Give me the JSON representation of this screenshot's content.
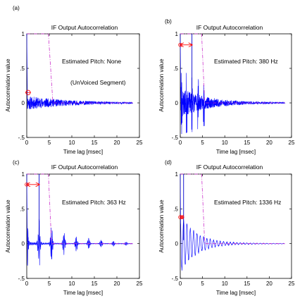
{
  "figure": {
    "panels": [
      {
        "id": "a",
        "panel_label": "(a)",
        "title": "IF Output Autocorrelation",
        "xlabel": "Time lag [msec]",
        "ylabel": "Autocorrelation value",
        "annotations": [
          "Estimated Pitch: None",
          "(UnVoiced Segment)"
        ]
      },
      {
        "id": "b",
        "panel_label": "(b)",
        "title": "IF Output Autocorrelation",
        "xlabel": "Time lag [msec]",
        "ylabel": "Autocorrelation value",
        "annotations": [
          "Estimated Pitch: 380 Hz"
        ]
      },
      {
        "id": "c",
        "panel_label": "(c)",
        "title": "IF Output Autocorrelation",
        "xlabel": "Time lag [msec]",
        "ylabel": "Autocorrelation value",
        "annotations": [
          "Estimated Pitch: 363 Hz"
        ]
      },
      {
        "id": "d",
        "panel_label": "(d)",
        "title": "IF Output Autocorrelation",
        "xlabel": "Time lag [msec]",
        "ylabel": "Autocorrelation value",
        "annotations": [
          "Estimated Pitch: 1336 Hz"
        ]
      }
    ]
  },
  "chart_data": [
    {
      "type": "line",
      "panel": "(a)",
      "title": "IF Output Autocorrelation",
      "xlabel": "Time lag [msec]",
      "ylabel": "Autocorrelation value",
      "xlim": [
        0,
        25
      ],
      "ylim": [
        -0.5,
        1
      ],
      "xticks": [
        0,
        5,
        10,
        15,
        20,
        25
      ],
      "yticks": [
        -0.5,
        0,
        0.5,
        1
      ],
      "signal_end_ms": 23.5,
      "series": [
        {
          "style": "blue-autocorrelation",
          "color": "#0000ff",
          "envelope": {
            "type": "noise",
            "seed": 11,
            "amp": 0.1,
            "decay_ms": 9,
            "floor": 0.005
          }
        },
        {
          "style": "dash-dot-window",
          "color": "#cc33cc",
          "x": [
            0,
            0.7,
            4.8,
            5.8,
            23.5
          ],
          "y": [
            1,
            1,
            1,
            0,
            0
          ]
        }
      ],
      "markers": {
        "color": "#ff0000",
        "points": [
          {
            "x": 0.3,
            "y": 0.15
          }
        ],
        "arrows": []
      },
      "guides": {
        "color": "#0000cc",
        "x": []
      }
    },
    {
      "type": "line",
      "panel": "(b)",
      "title": "IF Output Autocorrelation",
      "xlabel": "Time lag [msec]",
      "ylabel": "Autocorrelation value",
      "xlim": [
        0,
        25
      ],
      "ylim": [
        -0.5,
        1
      ],
      "xticks": [
        0,
        5,
        10,
        15,
        20,
        25
      ],
      "yticks": [
        -0.5,
        0,
        0.5,
        1
      ],
      "signal_end_ms": 23.5,
      "series": [
        {
          "style": "blue-autocorrelation",
          "color": "#0000ff",
          "envelope": {
            "type": "spiky",
            "seed": 23,
            "peaks_ms": [
              0.3,
              1.4,
              2.63,
              4.0,
              5.3
            ],
            "peak_amp": 0.55,
            "amp": 0.22,
            "decay_ms": 6,
            "floor": 0.006
          }
        },
        {
          "style": "dash-dot-window",
          "color": "#cc33cc",
          "x": [
            0,
            0.7,
            4.8,
            5.5,
            23.5
          ],
          "y": [
            1,
            1,
            1,
            0,
            0
          ]
        }
      ],
      "markers": {
        "color": "#ff0000",
        "points": [],
        "arrows": [
          {
            "x1": 0,
            "x2": 2.63,
            "y": 0.84
          }
        ]
      },
      "guides": {
        "color": "#0000cc",
        "x": [
          2.63
        ]
      }
    },
    {
      "type": "line",
      "panel": "(c)",
      "title": "IF Output Autocorrelation",
      "xlabel": "Time lag [msec]",
      "ylabel": "Autocorrelation value",
      "xlim": [
        0,
        25
      ],
      "ylim": [
        -0.5,
        1
      ],
      "xticks": [
        0,
        5,
        10,
        15,
        20,
        25
      ],
      "yticks": [
        -0.5,
        0,
        0.5,
        1
      ],
      "signal_end_ms": 23.5,
      "series": [
        {
          "style": "blue-autocorrelation",
          "color": "#0000ff",
          "envelope": {
            "type": "bursts",
            "seed": 37,
            "period_ms": 2.75,
            "burst_width_ms": 0.4,
            "amp": 0.52,
            "decay_ms": 7,
            "floor": 0.004
          }
        },
        {
          "style": "dash-dot-window",
          "color": "#cc33cc",
          "x": [
            0,
            0.7,
            4.8,
            5.5,
            23.5
          ],
          "y": [
            1,
            1,
            1,
            0,
            0
          ]
        }
      ],
      "markers": {
        "color": "#ff0000",
        "points": [],
        "arrows": [
          {
            "x1": 0,
            "x2": 2.75,
            "y": 0.85
          }
        ]
      },
      "guides": {
        "color": "#0000cc",
        "x": [
          2.75
        ]
      }
    },
    {
      "type": "line",
      "panel": "(d)",
      "title": "IF Output Autocorrelation",
      "xlabel": "Time lag [msec]",
      "ylabel": "Autocorrelation value",
      "xlim": [
        0,
        25
      ],
      "ylim": [
        -0.5,
        1
      ],
      "xticks": [
        0,
        5,
        10,
        15,
        20,
        25
      ],
      "yticks": [
        -0.5,
        0,
        0.5,
        1
      ],
      "signal_end_ms": 23.5,
      "series": [
        {
          "style": "blue-autocorrelation",
          "color": "#0000ff",
          "envelope": {
            "type": "decaying-sine",
            "seed": 41,
            "freq_khz": 1.336,
            "amp": 0.42,
            "decay_ms": 3.4,
            "noise": 0.03,
            "floor": 0.004
          }
        },
        {
          "style": "dash-dot-window",
          "color": "#cc33cc",
          "x": [
            0,
            0.7,
            4.8,
            5.5,
            23.5
          ],
          "y": [
            1,
            1,
            1,
            0,
            0
          ]
        }
      ],
      "markers": {
        "color": "#ff0000",
        "points": [],
        "arrows": [
          {
            "x1": 0,
            "x2": 0.75,
            "y": 0.38
          }
        ]
      },
      "guides": {
        "color": "#0000cc",
        "x": [
          0.75
        ]
      }
    }
  ]
}
